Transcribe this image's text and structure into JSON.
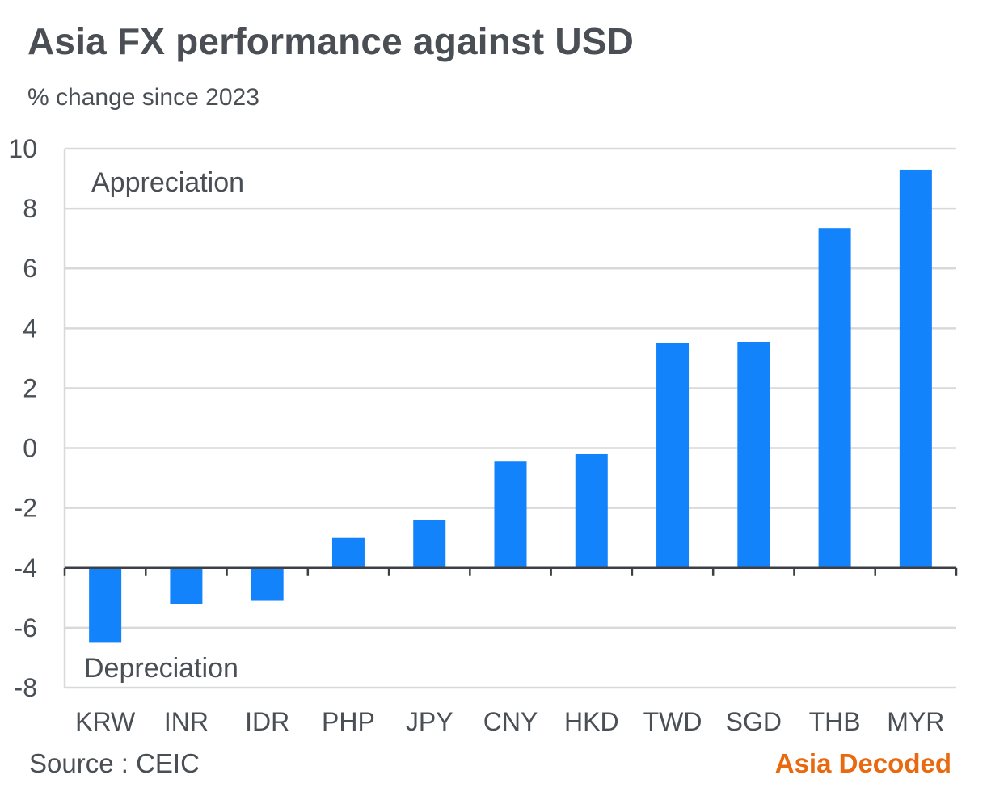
{
  "chart_data": {
    "type": "bar",
    "title": "Asia FX performance against USD",
    "subtitle": "% change since 2023",
    "categories": [
      "KRW",
      "INR",
      "IDR",
      "PHP",
      "JPY",
      "CNY",
      "HKD",
      "TWD",
      "SGD",
      "THB",
      "MYR"
    ],
    "values": [
      -6.5,
      -5.2,
      -5.1,
      -3.0,
      -2.4,
      -0.45,
      -0.2,
      3.5,
      3.55,
      7.35,
      9.3
    ],
    "baseline": -4,
    "ylim": [
      -8,
      10
    ],
    "yticks": [
      10,
      8,
      6,
      4,
      2,
      0,
      -2,
      -4,
      -6,
      -8
    ],
    "grid": true,
    "annotations": [
      "Appreciation",
      "Depreciation"
    ],
    "bar_color": "#1283fb",
    "xlabel": "",
    "ylabel": ""
  },
  "footer": {
    "source": "Source : CEIC",
    "brand": "Asia Decoded",
    "brand_color": "#e8690f"
  }
}
